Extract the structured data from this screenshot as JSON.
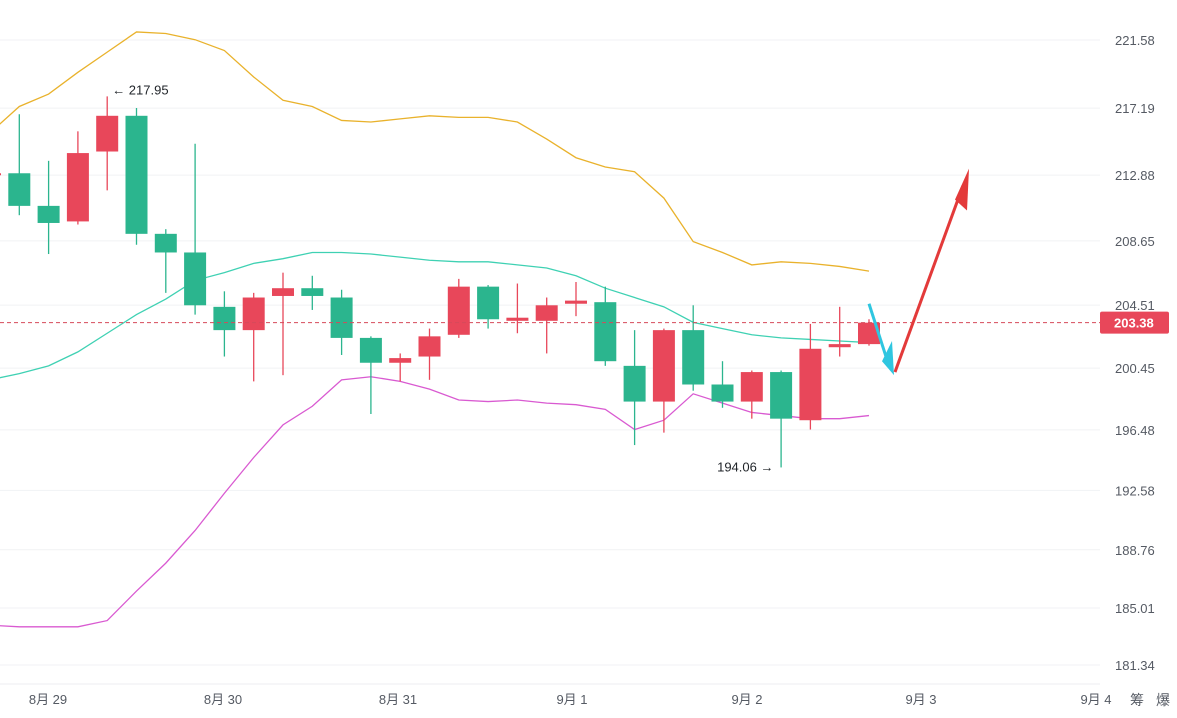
{
  "chart_data": {
    "type": "candlestick",
    "y_ticks": [
      "221.58",
      "217.19",
      "212.88",
      "208.65",
      "204.51",
      "200.45",
      "196.48",
      "192.58",
      "188.76",
      "185.01",
      "181.34"
    ],
    "x_ticks": [
      "8月 29",
      "8月 30",
      "8月 31",
      "9月 1",
      "9月 2",
      "9月 3",
      "9月 4"
    ],
    "corner_labels": [
      "筹",
      "爆"
    ],
    "ylim": [
      181.34,
      221.58
    ],
    "current_price": "203.38",
    "current_price_value": 203.38,
    "max_annotation": "217.95",
    "max_value": 217.95,
    "min_annotation": "194.06",
    "min_value": 194.06,
    "colors": {
      "up": "#e8475a",
      "down": "#2bb58e",
      "upper_band": "#e9b22c",
      "middle_band": "#3fd1b3",
      "lower_band": "#d95ad1",
      "price_line": "#d64a5a",
      "arrow_up": "#e33a3a",
      "arrow_down": "#2fc6e0"
    },
    "candles": [
      {
        "o": 213.0,
        "h": 213.1,
        "l": 212.9,
        "c": 213.0
      },
      {
        "o": 213.0,
        "h": 216.8,
        "l": 210.3,
        "c": 210.9
      },
      {
        "o": 210.9,
        "h": 213.8,
        "l": 207.8,
        "c": 209.8
      },
      {
        "o": 209.9,
        "h": 215.7,
        "l": 209.7,
        "c": 214.3
      },
      {
        "o": 214.4,
        "h": 217.95,
        "l": 211.9,
        "c": 216.7
      },
      {
        "o": 216.7,
        "h": 217.2,
        "l": 208.4,
        "c": 209.1
      },
      {
        "o": 209.1,
        "h": 209.4,
        "l": 205.3,
        "c": 207.9
      },
      {
        "o": 207.9,
        "h": 214.9,
        "l": 203.9,
        "c": 204.5
      },
      {
        "o": 204.4,
        "h": 205.4,
        "l": 201.2,
        "c": 202.9
      },
      {
        "o": 202.9,
        "h": 205.3,
        "l": 199.6,
        "c": 205.0
      },
      {
        "o": 205.1,
        "h": 206.6,
        "l": 200.0,
        "c": 205.6
      },
      {
        "o": 205.6,
        "h": 206.4,
        "l": 204.2,
        "c": 205.1
      },
      {
        "o": 205.0,
        "h": 205.5,
        "l": 201.3,
        "c": 202.4
      },
      {
        "o": 202.4,
        "h": 202.5,
        "l": 197.5,
        "c": 200.8
      },
      {
        "o": 200.8,
        "h": 201.4,
        "l": 199.6,
        "c": 201.1
      },
      {
        "o": 201.2,
        "h": 203.0,
        "l": 199.7,
        "c": 202.5
      },
      {
        "o": 202.6,
        "h": 206.2,
        "l": 202.4,
        "c": 205.7
      },
      {
        "o": 205.7,
        "h": 205.8,
        "l": 203.0,
        "c": 203.6
      },
      {
        "o": 203.5,
        "h": 205.9,
        "l": 202.7,
        "c": 203.7
      },
      {
        "o": 203.5,
        "h": 205.0,
        "l": 201.4,
        "c": 204.5
      },
      {
        "o": 204.6,
        "h": 206.0,
        "l": 203.8,
        "c": 204.8
      },
      {
        "o": 204.7,
        "h": 205.7,
        "l": 200.6,
        "c": 200.9
      },
      {
        "o": 200.6,
        "h": 202.9,
        "l": 195.5,
        "c": 198.3
      },
      {
        "o": 198.3,
        "h": 203.0,
        "l": 196.3,
        "c": 202.9
      },
      {
        "o": 202.9,
        "h": 204.5,
        "l": 199.0,
        "c": 199.4
      },
      {
        "o": 199.4,
        "h": 200.9,
        "l": 197.9,
        "c": 198.3
      },
      {
        "o": 198.3,
        "h": 200.3,
        "l": 197.2,
        "c": 200.2
      },
      {
        "o": 200.2,
        "h": 200.3,
        "l": 194.06,
        "c": 197.2
      },
      {
        "o": 197.1,
        "h": 203.3,
        "l": 196.5,
        "c": 201.7
      },
      {
        "o": 201.8,
        "h": 204.4,
        "l": 201.2,
        "c": 202.0
      },
      {
        "o": 202.0,
        "h": 203.6,
        "l": 201.9,
        "c": 203.38
      }
    ],
    "upper_band": [
      215.6,
      217.3,
      218.1,
      219.5,
      220.8,
      222.1,
      222.0,
      221.6,
      220.9,
      219.2,
      217.7,
      217.3,
      216.4,
      216.3,
      216.5,
      216.7,
      216.6,
      216.6,
      216.3,
      215.2,
      214.0,
      213.4,
      213.1,
      211.4,
      208.6,
      207.9,
      207.1,
      207.3,
      207.2,
      207.0,
      206.7
    ],
    "middle_band": [
      199.7,
      200.1,
      200.6,
      201.5,
      202.7,
      203.9,
      204.9,
      206.1,
      206.6,
      207.2,
      207.5,
      207.9,
      207.9,
      207.8,
      207.6,
      207.4,
      207.3,
      207.3,
      207.1,
      206.9,
      206.4,
      205.6,
      205.0,
      204.4,
      203.4,
      203.0,
      202.6,
      202.4,
      202.3,
      202.2,
      202.1
    ],
    "lower_band": [
      183.9,
      183.8,
      183.8,
      183.8,
      184.2,
      186.1,
      187.9,
      190.0,
      192.4,
      194.7,
      196.8,
      198.0,
      199.7,
      199.9,
      199.6,
      199.1,
      198.4,
      198.3,
      198.4,
      198.2,
      198.1,
      197.8,
      196.5,
      197.1,
      198.8,
      198.2,
      197.6,
      197.4,
      197.2,
      197.2,
      197.4
    ]
  }
}
